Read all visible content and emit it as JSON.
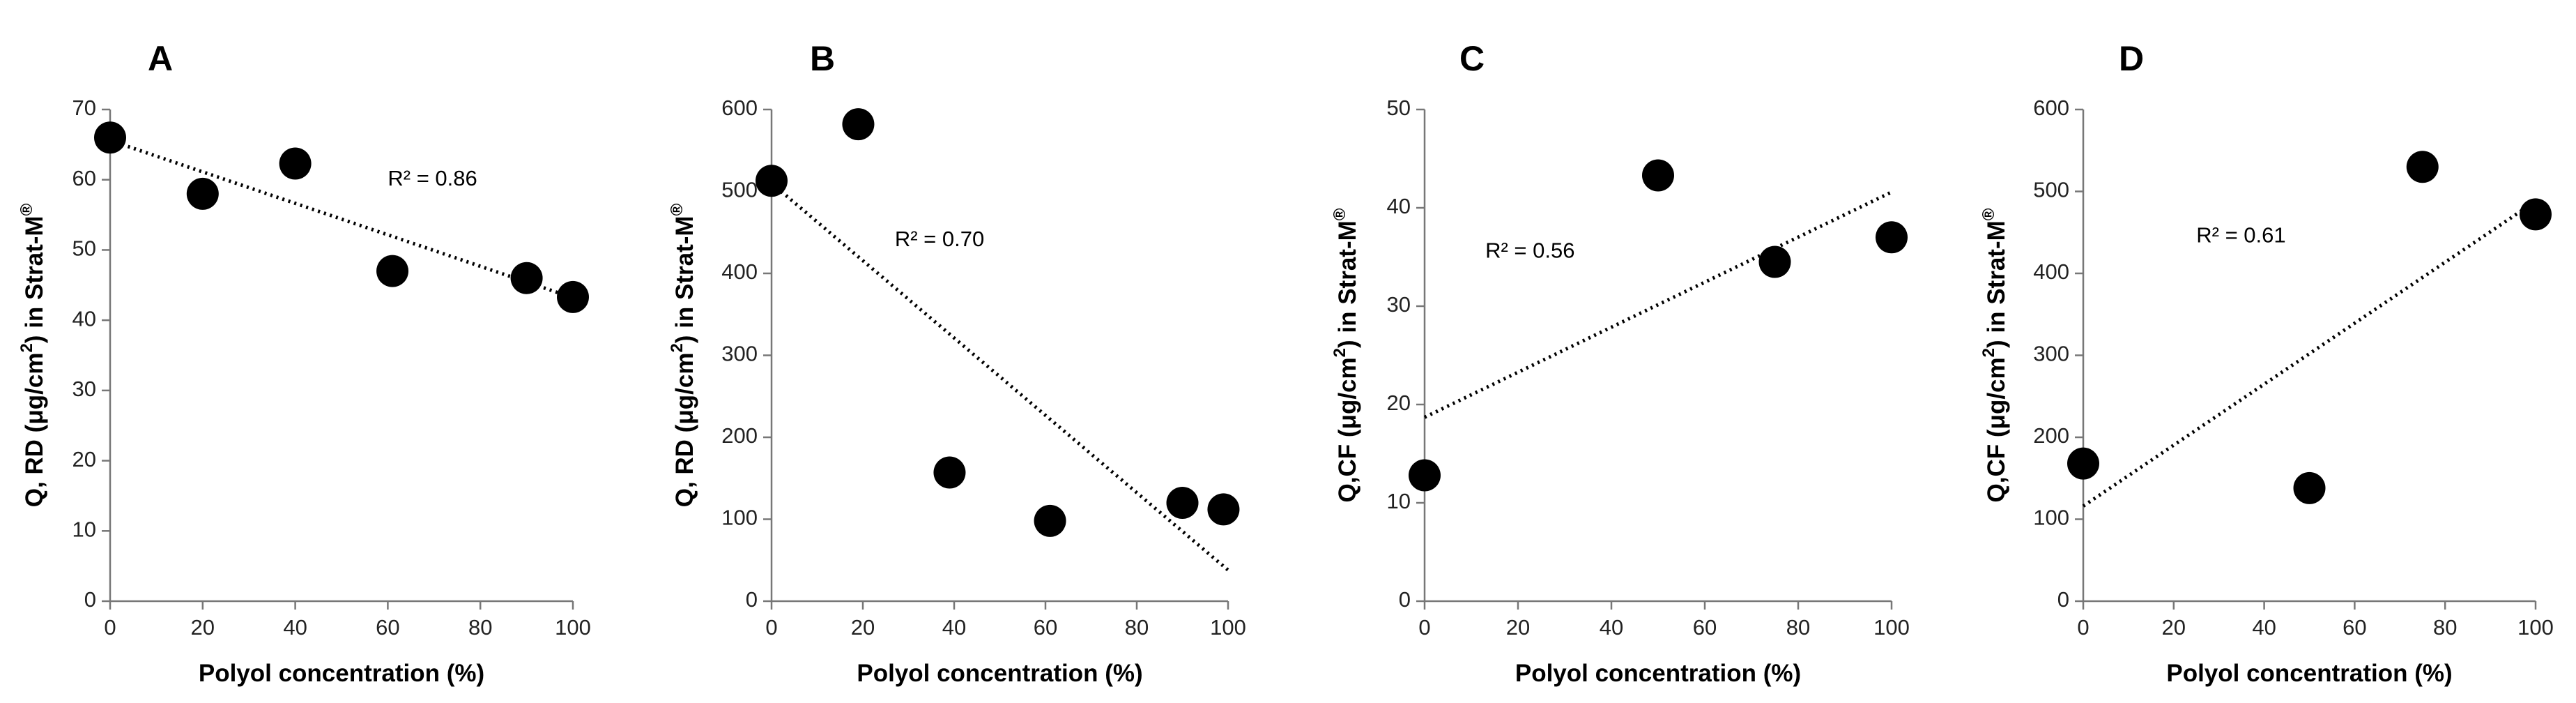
{
  "chart_data": [
    {
      "type": "scatter",
      "panel_label": "A",
      "xlabel": "Polyol concentration (%)",
      "ylabel_prefix": "Q, RD (μg/cm",
      "ylabel_sup": "2",
      "ylabel_mid": ") in Strat-M",
      "ylabel_reg": "®",
      "xlim": [
        0,
        100
      ],
      "ylim": [
        0,
        70
      ],
      "xticks": [
        0,
        20,
        40,
        60,
        80,
        100
      ],
      "yticks": [
        0,
        10,
        20,
        30,
        40,
        50,
        60,
        70
      ],
      "x": [
        0,
        20,
        40,
        61,
        90,
        100
      ],
      "y": [
        66,
        58,
        62.3,
        47,
        46,
        43.3
      ],
      "trendline": {
        "x": [
          0,
          100
        ],
        "y": [
          65.6,
          43.2
        ]
      },
      "annotation": {
        "text": "R² = 0.86",
        "at": [
          60,
          60
        ]
      }
    },
    {
      "type": "scatter",
      "panel_label": "B",
      "xlabel": "Polyol concentration (%)",
      "ylabel_prefix": "Q, RD (μg/cm",
      "ylabel_sup": "2",
      "ylabel_mid": ") in Strat-M",
      "ylabel_reg": "®",
      "xlim": [
        0,
        100
      ],
      "ylim": [
        0,
        600
      ],
      "xticks": [
        0,
        20,
        40,
        60,
        80,
        100
      ],
      "yticks": [
        0,
        100,
        200,
        300,
        400,
        500,
        600
      ],
      "x": [
        0,
        19,
        39,
        61,
        90,
        99
      ],
      "y": [
        513,
        582,
        157,
        98,
        120,
        112
      ],
      "trendline": {
        "x": [
          0,
          100
        ],
        "y": [
          510,
          38
        ]
      },
      "annotation": {
        "text": "R² = 0.70",
        "at": [
          27,
          440
        ]
      }
    },
    {
      "type": "scatter",
      "panel_label": "C",
      "xlabel": "Polyol concentration (%)",
      "ylabel_prefix": "Q,CF (μg/cm",
      "ylabel_sup": "2",
      "ylabel_mid": ") in Strat-M",
      "ylabel_reg": "®",
      "xlim": [
        0,
        100
      ],
      "ylim": [
        0,
        50
      ],
      "xticks": [
        0,
        20,
        40,
        60,
        80,
        100
      ],
      "yticks": [
        0,
        10,
        20,
        30,
        40,
        50
      ],
      "x": [
        0,
        50,
        75,
        100
      ],
      "y": [
        12.8,
        43.3,
        34.5,
        37
      ],
      "trendline": {
        "x": [
          0,
          100
        ],
        "y": [
          18.7,
          41.6
        ]
      },
      "annotation": {
        "text": "R² = 0.56",
        "at": [
          13,
          35.5
        ]
      }
    },
    {
      "type": "scatter",
      "panel_label": "D",
      "xlabel": "Polyol concentration (%)",
      "ylabel_prefix": "Q,CF (μg/cm",
      "ylabel_sup": "2",
      "ylabel_mid": ") in Strat-M",
      "ylabel_reg": "®",
      "xlim": [
        0,
        100
      ],
      "ylim": [
        0,
        600
      ],
      "xticks": [
        0,
        20,
        40,
        60,
        80,
        100
      ],
      "yticks": [
        0,
        100,
        200,
        300,
        400,
        500,
        600
      ],
      "x": [
        0,
        50,
        75,
        100
      ],
      "y": [
        168,
        138,
        530,
        472
      ],
      "trendline": {
        "x": [
          0,
          100
        ],
        "y": [
          116,
          488
        ]
      },
      "annotation": {
        "text": "R² = 0.61",
        "at": [
          25,
          445
        ]
      }
    }
  ]
}
